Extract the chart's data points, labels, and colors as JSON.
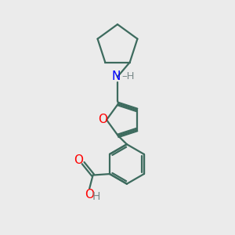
{
  "bg_color": "#ebebeb",
  "bond_color": "#3d6b5e",
  "N_color": "#0000ff",
  "O_color": "#ff0000",
  "H_color": "#7a8a8a",
  "line_width": 1.6,
  "figsize": [
    3.0,
    3.0
  ],
  "dpi": 100,
  "xlim": [
    0,
    10
  ],
  "ylim": [
    0,
    10
  ]
}
